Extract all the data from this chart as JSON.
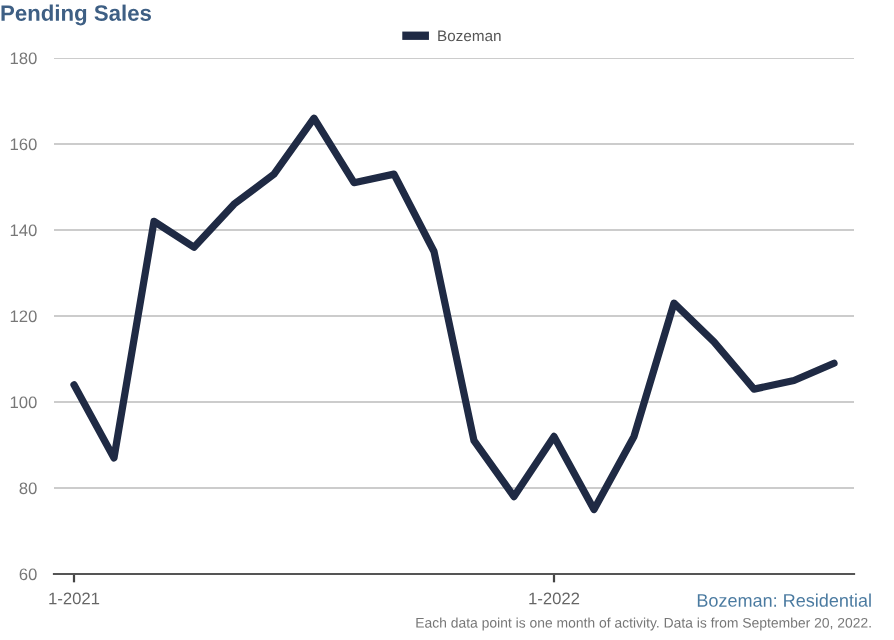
{
  "chart_data": {
    "type": "line",
    "title": "Pending Sales",
    "categories": [
      "1-2021",
      null,
      null,
      null,
      null,
      null,
      null,
      null,
      null,
      null,
      null,
      null,
      "1-2022",
      null,
      null,
      null,
      null,
      null,
      null,
      null
    ],
    "series": [
      {
        "name": "Bozeman",
        "color": "#1f2a44",
        "values": [
          104,
          87,
          142,
          136,
          146,
          153,
          166,
          151,
          153,
          135,
          91,
          78,
          92,
          75,
          92,
          123,
          114,
          103,
          105,
          109
        ]
      }
    ],
    "ylim": [
      60,
      180
    ],
    "yticks": [
      60,
      80,
      100,
      120,
      140,
      160,
      180
    ],
    "grid": "y",
    "legend": "top",
    "marker": "none",
    "line_style": "solid",
    "annotations": [
      "Bozeman: Residential",
      "Each data point is one month of activity. Data is from September 20, 2022."
    ]
  }
}
